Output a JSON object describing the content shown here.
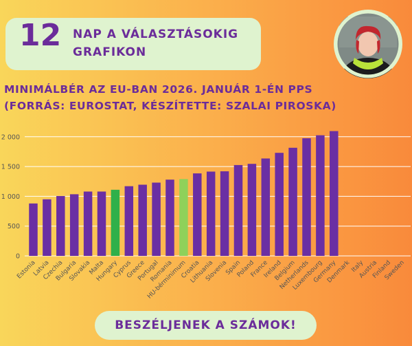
{
  "header": {
    "number": "12",
    "line1": "NAP A VÁLASZTÁSOKIG",
    "line2": "GRAFIKON"
  },
  "subtitle": {
    "line1": "MINIMÁLBÉR AZ EU-BAN 2026. JANUÁR 1-ÉN PPS",
    "line2": "(FORRÁS: EUROSTAT, KÉSZÍTETTE: SZALAI PIROSKA)"
  },
  "footer": {
    "label": "BESZÉLJENEK A SZÁMOK!"
  },
  "avatar": {
    "icon": "person-portrait-icon"
  },
  "colors": {
    "bar": "#6a2fa3",
    "hungary": "#2fb04a",
    "hu_minimum": "#8fd15a",
    "gridline": "#ffffff",
    "title": "#6b2c9a"
  },
  "chart_data": {
    "type": "bar",
    "categories": [
      "Estonia",
      "Latvia",
      "Czechia",
      "Bulgaria",
      "Slovakia",
      "Malta",
      "Hungary",
      "Cyprus",
      "Greece",
      "Portugal",
      "Romania",
      "HU-bérminimum",
      "Croatia",
      "Lithuania",
      "Slovenia",
      "Spain",
      "Poland",
      "France",
      "Ireland",
      "Belgium",
      "Netherlands",
      "Luxembourg",
      "Germany",
      "Denmark",
      "Italy",
      "Austria",
      "Finland",
      "Sweden"
    ],
    "values": [
      880,
      950,
      1005,
      1035,
      1080,
      1080,
      1110,
      1170,
      1195,
      1230,
      1280,
      1290,
      1385,
      1415,
      1420,
      1525,
      1545,
      1635,
      1730,
      1815,
      1975,
      2025,
      2095,
      null,
      null,
      null,
      null,
      null
    ],
    "highlight": {
      "Hungary": "hungary",
      "HU-bérminimum": "hu_minimum"
    },
    "yticks": [
      0,
      500,
      1000,
      1500,
      2000
    ],
    "ytick_labels": [
      "0",
      "500",
      "1 000",
      "1 500",
      "2 000"
    ],
    "ylim": [
      0,
      2200
    ],
    "grid": true,
    "legend": "none"
  }
}
